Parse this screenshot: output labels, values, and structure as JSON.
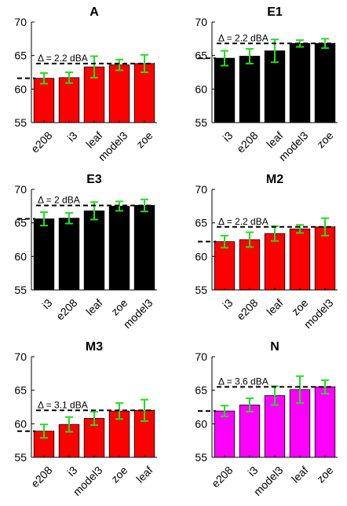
{
  "style": {
    "bar_edge": "#000000",
    "errorbar_color": "#22dd22",
    "dashed_line_color": "#000000",
    "background": "#ffffff"
  },
  "chart_data": [
    {
      "type": "bar",
      "title": "A",
      "categories": [
        "e208",
        "i3",
        "leaf",
        "model3",
        "zoe"
      ],
      "values": [
        61.6,
        61.7,
        63.3,
        63.6,
        63.8
      ],
      "errors": [
        0.8,
        0.8,
        1.6,
        0.8,
        1.3
      ],
      "bar_color": "#ff0000",
      "ylim": [
        55,
        70
      ],
      "yticks": [
        55,
        60,
        65,
        70
      ],
      "annotation": "Δ = 2.2 dBA",
      "ref_low": 61.6,
      "ref_high": 63.8
    },
    {
      "type": "bar",
      "title": "E1",
      "categories": [
        "i3",
        "e208",
        "leaf",
        "model3",
        "zoe"
      ],
      "values": [
        64.6,
        64.9,
        65.7,
        66.8,
        66.8
      ],
      "errors": [
        1.1,
        1.1,
        1.7,
        0.5,
        0.7
      ],
      "bar_color": "#000000",
      "ylim": [
        55,
        70
      ],
      "yticks": [
        55,
        60,
        65,
        70
      ],
      "annotation": "Δ = 2.2 dBA",
      "ref_low": 64.6,
      "ref_high": 66.8
    },
    {
      "type": "bar",
      "title": "E3",
      "categories": [
        "i3",
        "e208",
        "leaf",
        "zoe",
        "model3"
      ],
      "values": [
        65.6,
        65.7,
        66.8,
        67.5,
        67.6
      ],
      "errors": [
        1.0,
        0.8,
        1.3,
        0.7,
        0.9
      ],
      "bar_color": "#000000",
      "ylim": [
        55,
        70
      ],
      "yticks": [
        55,
        60,
        65,
        70
      ],
      "annotation": "Δ = 2 dBA",
      "ref_low": 65.6,
      "ref_high": 67.6
    },
    {
      "type": "bar",
      "title": "M2",
      "categories": [
        "i3",
        "e208",
        "leaf",
        "zoe",
        "model3"
      ],
      "values": [
        62.2,
        62.5,
        63.4,
        64.1,
        64.4
      ],
      "errors": [
        0.9,
        1.1,
        1.1,
        0.6,
        1.3
      ],
      "bar_color": "#ff0000",
      "ylim": [
        55,
        70
      ],
      "yticks": [
        55,
        60,
        65,
        70
      ],
      "annotation": "Δ = 2.2 dBA",
      "ref_low": 62.2,
      "ref_high": 64.4
    },
    {
      "type": "bar",
      "title": "M3",
      "categories": [
        "e208",
        "i3",
        "model3",
        "zoe",
        "leaf"
      ],
      "values": [
        58.9,
        59.9,
        60.8,
        61.9,
        62.0
      ],
      "errors": [
        1.0,
        1.1,
        1.0,
        1.2,
        1.6
      ],
      "bar_color": "#ff0000",
      "ylim": [
        55,
        70
      ],
      "yticks": [
        55,
        60,
        65,
        70
      ],
      "annotation": "Δ = 3.1 dBA",
      "ref_low": 58.9,
      "ref_high": 62.0
    },
    {
      "type": "bar",
      "title": "N",
      "categories": [
        "e208",
        "i3",
        "model3",
        "leaf",
        "zoe"
      ],
      "values": [
        61.9,
        62.8,
        64.2,
        65.1,
        65.5
      ],
      "errors": [
        0.8,
        1.0,
        1.4,
        2.0,
        1.0
      ],
      "bar_color": "#ff00ff",
      "ylim": [
        55,
        70
      ],
      "yticks": [
        55,
        60,
        65,
        70
      ],
      "annotation": "Δ = 3.6 dBA",
      "ref_low": 61.9,
      "ref_high": 65.5
    }
  ]
}
